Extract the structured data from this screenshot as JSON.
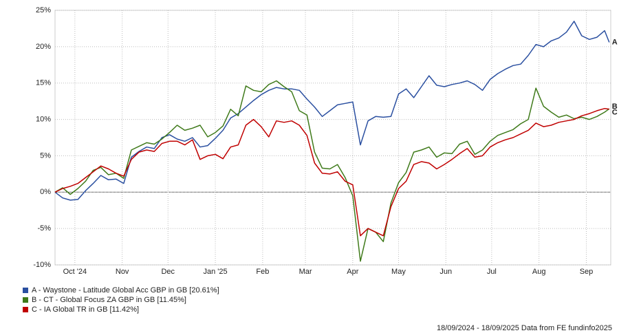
{
  "chart_data": {
    "type": "line",
    "x": [
      0,
      5,
      10,
      15,
      20,
      25,
      30,
      35,
      40,
      45,
      50,
      55,
      60,
      65,
      70,
      75,
      80,
      85,
      90,
      95,
      100,
      105,
      110,
      115,
      120,
      125,
      130,
      135,
      140,
      145,
      150,
      155,
      160,
      165,
      170,
      175,
      180,
      185,
      190,
      195,
      200,
      205,
      210,
      215,
      220,
      225,
      230,
      235,
      240,
      245,
      250,
      255,
      260,
      265,
      270,
      275,
      280,
      285,
      290,
      295,
      300,
      305,
      310,
      315,
      320,
      325,
      330,
      335,
      340,
      345,
      350,
      355,
      360,
      363
    ],
    "xlim": [
      0,
      364
    ],
    "xticks": [
      {
        "value": 13,
        "label": "Oct '24"
      },
      {
        "value": 44,
        "label": "Nov"
      },
      {
        "value": 74,
        "label": "Dec"
      },
      {
        "value": 105,
        "label": "Jan '25"
      },
      {
        "value": 136,
        "label": "Feb"
      },
      {
        "value": 164,
        "label": "Mar"
      },
      {
        "value": 195,
        "label": "Apr"
      },
      {
        "value": 225,
        "label": "May"
      },
      {
        "value": 256,
        "label": "Jun"
      },
      {
        "value": 286,
        "label": "Jul"
      },
      {
        "value": 317,
        "label": "Aug"
      },
      {
        "value": 348,
        "label": "Sep"
      }
    ],
    "ylim": [
      -10,
      25
    ],
    "yticks": [
      {
        "value": -10,
        "label": "-10%"
      },
      {
        "value": -5,
        "label": "-5%"
      },
      {
        "value": 0,
        "label": "0%"
      },
      {
        "value": 5,
        "label": "5%"
      },
      {
        "value": 10,
        "label": "10%"
      },
      {
        "value": 15,
        "label": "15%"
      },
      {
        "value": 20,
        "label": "20%"
      },
      {
        "value": 25,
        "label": "25%"
      }
    ],
    "grid": true,
    "series": [
      {
        "name": "A - Waystone - Latitude Global Acc GBP in GB [20.61%]",
        "end_label": "A",
        "color": "#2a4fa0",
        "values": [
          0,
          -0.8,
          -1.1,
          -1.0,
          0.2,
          1.2,
          2.3,
          1.7,
          1.8,
          1.2,
          4.8,
          5.6,
          6.2,
          6.0,
          7.5,
          7.9,
          7.3,
          7.0,
          7.5,
          6.2,
          6.4,
          7.4,
          8.5,
          10.2,
          10.8,
          11.7,
          12.6,
          13.4,
          14.0,
          14.4,
          14.2,
          14.2,
          14.0,
          12.8,
          11.7,
          10.4,
          11.2,
          12.0,
          12.2,
          12.4,
          6.5,
          9.8,
          10.4,
          10.3,
          10.4,
          13.5,
          14.2,
          13.0,
          14.5,
          16.0,
          14.7,
          14.5,
          14.8,
          15.0,
          15.3,
          14.8,
          14.0,
          15.5,
          16.3,
          16.9,
          17.4,
          17.6,
          18.8,
          20.3,
          20.0,
          20.8,
          21.2,
          22.0,
          23.5,
          21.5,
          21.0,
          21.3,
          22.2,
          20.6
        ]
      },
      {
        "name": "B - CT - Global Focus ZA GBP in GB [11.45%]",
        "end_label": "B",
        "color": "#3f7a1a",
        "values": [
          0,
          0.6,
          -0.3,
          0.5,
          1.5,
          3.0,
          3.4,
          2.4,
          2.6,
          1.9,
          5.8,
          6.3,
          6.8,
          6.6,
          7.3,
          8.2,
          9.2,
          8.5,
          8.8,
          9.2,
          7.6,
          8.2,
          9.1,
          11.4,
          10.5,
          14.6,
          14.0,
          13.8,
          14.8,
          15.3,
          14.5,
          13.8,
          11.2,
          10.6,
          5.5,
          3.3,
          3.2,
          3.8,
          2.0,
          -0.5,
          -9.5,
          -5.0,
          -5.5,
          -6.8,
          -1.5,
          1.3,
          2.7,
          5.5,
          5.8,
          6.2,
          4.8,
          5.4,
          5.3,
          6.6,
          7.0,
          5.2,
          5.8,
          7.0,
          7.8,
          8.2,
          8.6,
          9.4,
          10.0,
          14.3,
          11.8,
          11.0,
          10.3,
          10.6,
          10.1,
          10.3,
          10.0,
          10.4,
          11.0,
          11.45
        ]
      },
      {
        "name": "C - IA Global TR in GB [11.42%]",
        "end_label": "C",
        "color": "#c00000",
        "values": [
          0,
          0.5,
          0.8,
          1.2,
          2.0,
          2.8,
          3.6,
          3.2,
          2.6,
          2.2,
          4.5,
          5.5,
          5.8,
          5.6,
          6.7,
          7.0,
          7.0,
          6.5,
          7.2,
          4.5,
          5.0,
          5.2,
          4.6,
          6.2,
          6.5,
          9.2,
          10.0,
          9.0,
          7.6,
          9.8,
          9.6,
          9.8,
          9.2,
          7.8,
          4.0,
          2.6,
          2.5,
          2.8,
          1.5,
          1.0,
          -6.0,
          -5.0,
          -5.5,
          -6.0,
          -2.0,
          0.5,
          1.5,
          3.8,
          4.2,
          4.0,
          3.2,
          3.8,
          4.5,
          5.3,
          6.0,
          4.8,
          5.0,
          6.2,
          6.8,
          7.2,
          7.5,
          8.0,
          8.5,
          9.5,
          9.0,
          9.2,
          9.6,
          9.8,
          10.0,
          10.5,
          10.8,
          11.2,
          11.5,
          11.42
        ]
      }
    ],
    "footer": "18/09/2024 - 18/09/2025 Data from FE fundinfo2025"
  }
}
